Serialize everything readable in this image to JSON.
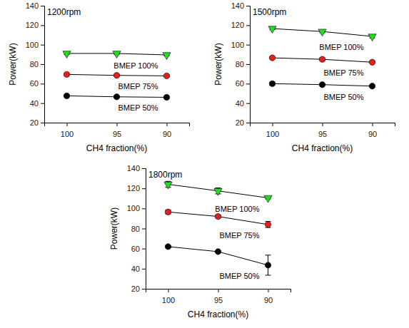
{
  "chart_data": [
    {
      "type": "line",
      "title": "1200rpm",
      "x_label": "CH4 fraction(%)",
      "y_label": "Power(kW)",
      "categories": [
        "100",
        "95",
        "90"
      ],
      "ylim": [
        20,
        140
      ],
      "yticks": [
        20,
        40,
        60,
        80,
        100,
        120,
        140
      ],
      "series": [
        {
          "name": "BMEP 100%",
          "color": "#22dd22",
          "marker": "triangle-down",
          "values": [
            91,
            91,
            89.5
          ],
          "errors": [
            1,
            1,
            1
          ]
        },
        {
          "name": "BMEP 75%",
          "color": "#e02020",
          "marker": "circle",
          "values": [
            69.5,
            68.5,
            68
          ],
          "errors": [
            1,
            1,
            1
          ]
        },
        {
          "name": "BMEP 50%",
          "color": "#000000",
          "marker": "circle",
          "values": [
            47.5,
            46.5,
            46
          ],
          "errors": [
            1,
            1,
            1
          ]
        }
      ]
    },
    {
      "type": "line",
      "title": "1500rpm",
      "x_label": "CH4 fraction(%)",
      "y_label": "Power(kW)",
      "categories": [
        "100",
        "95",
        "90"
      ],
      "ylim": [
        20,
        140
      ],
      "yticks": [
        20,
        40,
        60,
        80,
        100,
        120,
        140
      ],
      "series": [
        {
          "name": "BMEP 100%",
          "color": "#22dd22",
          "marker": "triangle-down",
          "values": [
            116.5,
            113.5,
            108.5
          ],
          "errors": [
            1,
            1,
            1.5
          ]
        },
        {
          "name": "BMEP 75%",
          "color": "#e02020",
          "marker": "circle",
          "values": [
            86.5,
            85,
            82
          ],
          "errors": [
            1,
            1.5,
            1
          ]
        },
        {
          "name": "BMEP 50%",
          "color": "#000000",
          "marker": "circle",
          "values": [
            60,
            59,
            57.5
          ],
          "errors": [
            1.5,
            1,
            1
          ]
        }
      ]
    },
    {
      "type": "line",
      "title": "1800rpm",
      "x_label": "CH4 fraction(%)",
      "y_label": "Power(kW)",
      "categories": [
        "100",
        "95",
        "90"
      ],
      "ylim": [
        20,
        140
      ],
      "yticks": [
        20,
        40,
        60,
        80,
        100,
        120,
        140
      ],
      "series": [
        {
          "name": "BMEP 100%",
          "color": "#22dd22",
          "marker": "triangle-down",
          "values": [
            124,
            117.5,
            110.5
          ],
          "errors": [
            3,
            3,
            1
          ]
        },
        {
          "name": "BMEP 75%",
          "color": "#e02020",
          "marker": "circle",
          "values": [
            96.5,
            92,
            84
          ],
          "errors": [
            2,
            1.5,
            3
          ]
        },
        {
          "name": "BMEP 50%",
          "color": "#000000",
          "marker": "circle",
          "values": [
            62,
            57,
            43.5
          ],
          "errors": [
            1,
            0.5,
            10
          ]
        }
      ]
    }
  ]
}
